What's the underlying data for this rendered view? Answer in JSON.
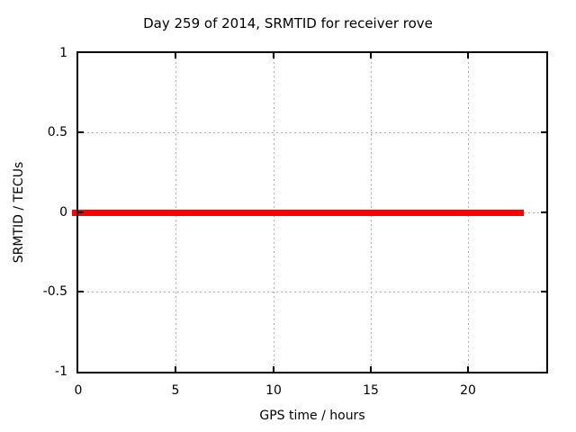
{
  "chart_data": {
    "type": "line",
    "title": "Day 259 of 2014, SRMTID for receiver rove",
    "xlabel": "GPS time / hours",
    "ylabel": "SRMTID / TECUs",
    "xlim": [
      0,
      24
    ],
    "ylim": [
      -1,
      1
    ],
    "xticks": [
      0,
      5,
      10,
      15,
      20
    ],
    "yticks": [
      -1,
      -0.5,
      0,
      0.5,
      1
    ],
    "grid": "dotted",
    "legend_position": "none",
    "series": [
      {
        "name": "SRMTID",
        "color": "#ff0000",
        "style": "thick-solid",
        "x": [
          0,
          22.8
        ],
        "y": [
          0,
          0
        ],
        "description": "Constant value of 0 TECUs from hour 0 to approximately hour 22.8"
      }
    ]
  },
  "axes": {
    "x": {
      "label": "GPS time / hours",
      "tick_labels": [
        "0",
        "5",
        "10",
        "15",
        "20"
      ]
    },
    "y": {
      "label": "SRMTID / TECUs",
      "tick_labels": [
        "1",
        "0.5",
        "0",
        "-0.5",
        "-1"
      ]
    }
  },
  "colors": {
    "line": "#ff0000",
    "grid": "#b0b0b0",
    "axis": "#000000",
    "text": "#000000",
    "background": "#ffffff"
  }
}
